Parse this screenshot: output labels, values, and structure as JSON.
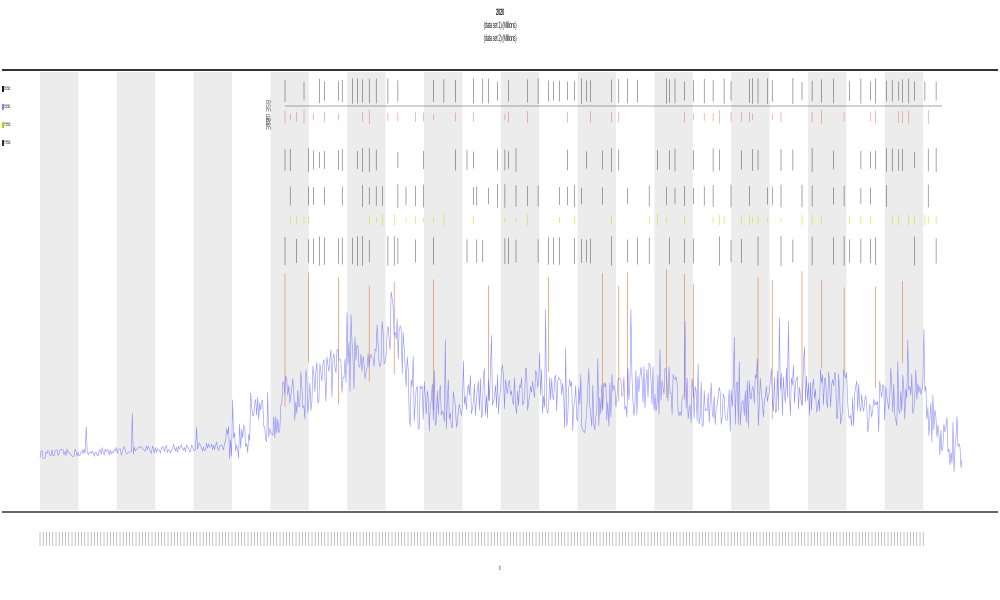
{
  "chart_data": {
    "type": "line",
    "title": "2020",
    "subtitle_lines": [
      "(data set 1) (Millions)",
      "(data set 2) (Millions)"
    ],
    "xlabel": "t",
    "ylabel": "",
    "grid": false,
    "legend_position": "left",
    "legend": [
      {
        "name": "BSE",
        "color": "#1a1a1a"
      },
      {
        "name": "BSE",
        "color": "#7f7fff"
      },
      {
        "name": "HSE",
        "color": "#c8c800"
      },
      {
        "name": "HSE",
        "color": "#333333"
      }
    ],
    "track_labels": [
      "BSE data",
      "BSE"
    ],
    "colors": {
      "line": "#6b6bff",
      "band": "#ececec",
      "spike_orange": "#e0803c",
      "spike_black": "#222222",
      "spike_yellow": "#d6d600",
      "spike_red": "#e05050",
      "axis": "#333333"
    },
    "bands": 12,
    "series_summary": {
      "start_level": 0.04,
      "rise_point": 0.21,
      "peak_point": 0.38,
      "peak_level": 0.38,
      "plateau_level": 0.17,
      "end_level": 0.03
    }
  }
}
